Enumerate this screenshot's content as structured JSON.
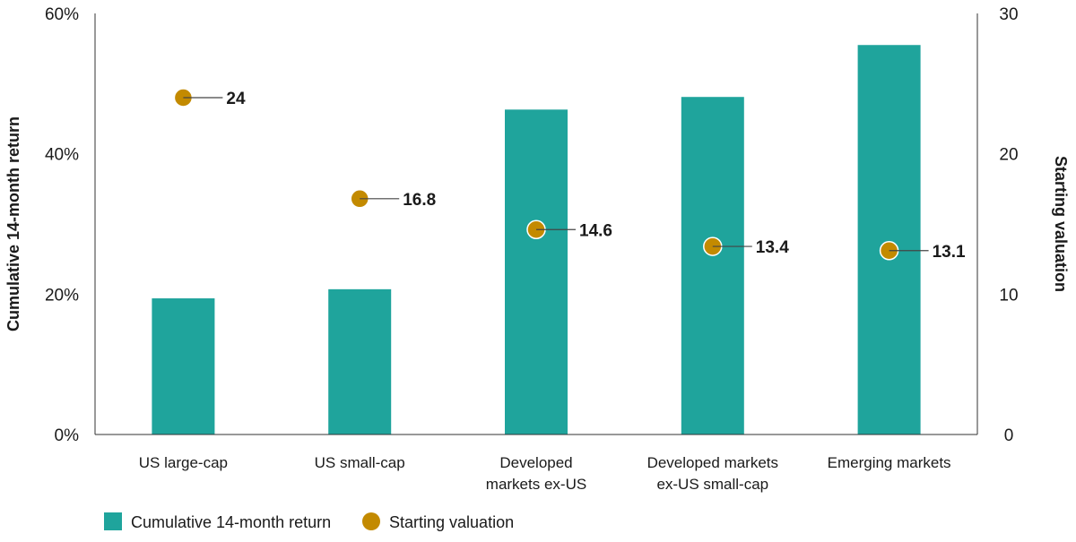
{
  "chart_data": {
    "type": "bar",
    "categories": [
      [
        "US large-cap"
      ],
      [
        "US small-cap"
      ],
      [
        "Developed",
        "markets ex-US"
      ],
      [
        "Developed markets",
        "ex-US small-cap"
      ],
      [
        "Emerging markets"
      ]
    ],
    "series": [
      {
        "name": "Cumulative 14-month return",
        "type": "bar",
        "axis": "left",
        "values": [
          19.4,
          20.7,
          46.3,
          48.1,
          55.5
        ],
        "color": "#1FA49C"
      },
      {
        "name": "Starting valuation",
        "type": "scatter",
        "axis": "right",
        "values": [
          24,
          16.8,
          14.6,
          13.4,
          13.1
        ],
        "labels": [
          "24",
          "16.8",
          "14.6",
          "13.4",
          "13.1"
        ],
        "color": "#C38A00"
      }
    ],
    "ylabel": "Cumulative 14-month return",
    "y2label": "Starting valuation",
    "ylim": [
      0,
      60
    ],
    "y2lim": [
      0,
      30
    ],
    "yticks": [
      "0%",
      "20%",
      "40%",
      "60%"
    ],
    "yticks_values": [
      0,
      20,
      40,
      60
    ],
    "y2ticks": [
      "0",
      "10",
      "20",
      "30"
    ],
    "y2ticks_values": [
      0,
      10,
      20,
      30
    ],
    "grid": false,
    "legend_position": "bottom-left"
  }
}
